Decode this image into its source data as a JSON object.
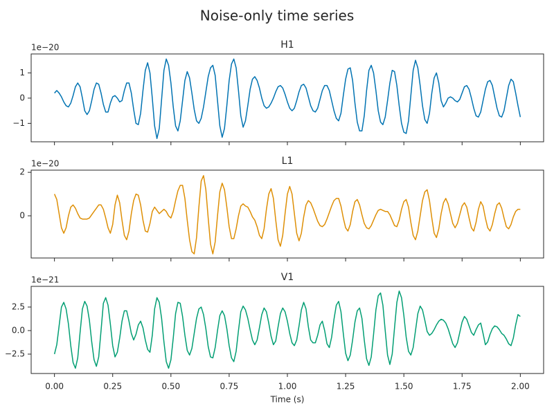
{
  "chart_data": {
    "type": "line",
    "title": "Noise-only time series",
    "xlabel": "Time (s)",
    "xlim": [
      -0.1,
      2.1
    ],
    "xticks": [
      {
        "value": 0,
        "label": "0.00"
      },
      {
        "value": 0.25,
        "label": "0.25"
      },
      {
        "value": 0.5,
        "label": "0.50"
      },
      {
        "value": 0.75,
        "label": "0.75"
      },
      {
        "value": 1,
        "label": "1.00"
      },
      {
        "value": 1.25,
        "label": "1.25"
      },
      {
        "value": 1.5,
        "label": "1.50"
      },
      {
        "value": 1.75,
        "label": "1.75"
      },
      {
        "value": 2,
        "label": "2.00"
      }
    ],
    "x": [
      0,
      0.01,
      0.02,
      0.03,
      0.04,
      0.05,
      0.06,
      0.07,
      0.08,
      0.09,
      0.1,
      0.11,
      0.12,
      0.13,
      0.14,
      0.15,
      0.16,
      0.17,
      0.18,
      0.19,
      0.2,
      0.21,
      0.22,
      0.23,
      0.24,
      0.25,
      0.26,
      0.27,
      0.28,
      0.29,
      0.3,
      0.31,
      0.32,
      0.33,
      0.34,
      0.35,
      0.36,
      0.37,
      0.38,
      0.39,
      0.4,
      0.41,
      0.42,
      0.43,
      0.44,
      0.45,
      0.46,
      0.47,
      0.48,
      0.49,
      0.5,
      0.51,
      0.52,
      0.53,
      0.54,
      0.55,
      0.56,
      0.57,
      0.58,
      0.59,
      0.6,
      0.61,
      0.62,
      0.63,
      0.64,
      0.65,
      0.66,
      0.67,
      0.68,
      0.69,
      0.7,
      0.71,
      0.72,
      0.73,
      0.74,
      0.75,
      0.76,
      0.77,
      0.78,
      0.79,
      0.8,
      0.81,
      0.82,
      0.83,
      0.84,
      0.85,
      0.86,
      0.87,
      0.88,
      0.89,
      0.9,
      0.91,
      0.92,
      0.93,
      0.94,
      0.95,
      0.96,
      0.97,
      0.98,
      0.99,
      1,
      1.01,
      1.02,
      1.03,
      1.04,
      1.05,
      1.06,
      1.07,
      1.08,
      1.09,
      1.1,
      1.11,
      1.12,
      1.13,
      1.14,
      1.15,
      1.16,
      1.17,
      1.18,
      1.19,
      1.2,
      1.21,
      1.22,
      1.23,
      1.24,
      1.25,
      1.26,
      1.27,
      1.28,
      1.29,
      1.3,
      1.31,
      1.32,
      1.33,
      1.34,
      1.35,
      1.36,
      1.37,
      1.38,
      1.39,
      1.4,
      1.41,
      1.42,
      1.43,
      1.44,
      1.45,
      1.46,
      1.47,
      1.48,
      1.49,
      1.5,
      1.51,
      1.52,
      1.53,
      1.54,
      1.55,
      1.56,
      1.57,
      1.58,
      1.59,
      1.6,
      1.61,
      1.62,
      1.63,
      1.64,
      1.65,
      1.66,
      1.67,
      1.68,
      1.69,
      1.7,
      1.71,
      1.72,
      1.73,
      1.74,
      1.75,
      1.76,
      1.77,
      1.78,
      1.79,
      1.8,
      1.81,
      1.82,
      1.83,
      1.84,
      1.85,
      1.86,
      1.87,
      1.88,
      1.89,
      1.9,
      1.91,
      1.92,
      1.93,
      1.94,
      1.95,
      1.96,
      1.97,
      1.98,
      1.99,
      2
    ],
    "panels": [
      {
        "title": "H1",
        "offset_label": "1e−20",
        "ylim": [
          -1.73,
          1.75
        ],
        "yticks": [
          {
            "value": -1,
            "label": "−1"
          },
          0,
          1
        ],
        "series": [
          {
            "color": "#0173b2",
            "values": [
              0.2,
              0.3,
              0.2,
              0.05,
              -0.15,
              -0.3,
              -0.35,
              -0.2,
              0.1,
              0.45,
              0.6,
              0.45,
              0,
              -0.5,
              -0.65,
              -0.5,
              -0.1,
              0.35,
              0.6,
              0.55,
              0.2,
              -0.25,
              -0.55,
              -0.55,
              -0.2,
              0.05,
              0.1,
              0,
              -0.15,
              -0.1,
              0.3,
              0.6,
              0.6,
              0.2,
              -0.45,
              -1,
              -1.05,
              -0.6,
              0.3,
              1.1,
              1.4,
              1,
              0,
              -1.1,
              -1.6,
              -1.2,
              -0.05,
              1.1,
              1.55,
              1.3,
              0.6,
              -0.35,
              -1.1,
              -1.3,
              -0.9,
              -0.1,
              0.7,
              1.05,
              0.8,
              0.2,
              -0.45,
              -0.9,
              -1,
              -0.8,
              -0.35,
              0.25,
              0.85,
              1.2,
              1.3,
              0.9,
              -0.1,
              -1.1,
              -1.55,
              -1.2,
              -0.3,
              0.7,
              1.35,
              1.55,
              1.2,
              0.3,
              -0.7,
              -1.15,
              -0.9,
              -0.3,
              0.35,
              0.75,
              0.85,
              0.7,
              0.4,
              0,
              -0.3,
              -0.4,
              -0.35,
              -0.2,
              0,
              0.25,
              0.45,
              0.5,
              0.4,
              0.15,
              -0.15,
              -0.4,
              -0.5,
              -0.4,
              -0.1,
              0.25,
              0.5,
              0.55,
              0.4,
              0.05,
              -0.3,
              -0.5,
              -0.55,
              -0.4,
              -0.05,
              0.3,
              0.5,
              0.5,
              0.3,
              -0.1,
              -0.5,
              -0.8,
              -0.9,
              -0.6,
              0.1,
              0.75,
              1.15,
              1.2,
              0.7,
              -0.2,
              -0.95,
              -1.3,
              -1.3,
              -0.7,
              0.3,
              1.1,
              1.3,
              1,
              0.3,
              -0.5,
              -0.95,
              -1.05,
              -0.75,
              -0.1,
              0.6,
              1.1,
              1.05,
              0.5,
              -0.3,
              -1,
              -1.35,
              -1.4,
              -0.9,
              0.1,
              1.1,
              1.5,
              1.2,
              0.5,
              -0.3,
              -0.85,
              -1,
              -0.6,
              0.2,
              0.8,
              1,
              0.6,
              -0.1,
              -0.35,
              -0.2,
              0,
              0.05,
              0,
              -0.1,
              -0.15,
              -0.05,
              0.2,
              0.45,
              0.5,
              0.35,
              0,
              -0.4,
              -0.7,
              -0.75,
              -0.55,
              -0.1,
              0.35,
              0.65,
              0.7,
              0.5,
              0.05,
              -0.4,
              -0.7,
              -0.75,
              -0.5,
              0,
              0.5,
              0.75,
              0.65,
              0.2,
              -0.3,
              -0.75
            ]
          }
        ]
      },
      {
        "title": "L1",
        "offset_label": "1e−20",
        "ylim": [
          -1.94,
          2.1
        ],
        "yticks": [
          0,
          2
        ],
        "series": [
          {
            "color": "#de8f05",
            "values": [
              1,
              0.75,
              0.1,
              -0.55,
              -0.8,
              -0.55,
              0,
              0.4,
              0.5,
              0.35,
              0.1,
              -0.1,
              -0.15,
              -0.15,
              -0.15,
              -0.1,
              0.05,
              0.2,
              0.35,
              0.5,
              0.5,
              0.3,
              -0.1,
              -0.55,
              -0.8,
              -0.4,
              0.5,
              0.95,
              0.6,
              -0.2,
              -0.9,
              -1.1,
              -0.7,
              0.1,
              0.7,
              1,
              0.95,
              0.5,
              -0.2,
              -0.7,
              -0.75,
              -0.35,
              0.2,
              0.4,
              0.25,
              0.1,
              0.2,
              0.3,
              0.2,
              0,
              -0.1,
              0.2,
              0.7,
              1.15,
              1.4,
              1.4,
              0.8,
              -0.2,
              -1.1,
              -1.65,
              -1.75,
              -1,
              0.4,
              1.6,
              1.85,
              1.2,
              -0.1,
              -1.3,
              -1.75,
              -1.2,
              0,
              1.1,
              1.5,
              1.2,
              0.4,
              -0.5,
              -1.05,
              -1.05,
              -0.6,
              0,
              0.45,
              0.55,
              0.45,
              0.4,
              0.2,
              -0.05,
              -0.2,
              -0.5,
              -0.9,
              -1.05,
              -0.6,
              0.3,
              1,
              1.25,
              0.8,
              -0.2,
              -1.1,
              -1.4,
              -0.9,
              0.1,
              1,
              1.35,
              1,
              0.1,
              -0.8,
              -1.15,
              -0.8,
              -0.05,
              0.5,
              0.7,
              0.6,
              0.35,
              0.05,
              -0.25,
              -0.45,
              -0.5,
              -0.4,
              -0.15,
              0.15,
              0.45,
              0.7,
              0.8,
              0.8,
              0.45,
              -0.1,
              -0.55,
              -0.7,
              -0.4,
              0.2,
              0.65,
              0.75,
              0.5,
              0.05,
              -0.35,
              -0.55,
              -0.6,
              -0.45,
              -0.2,
              0.05,
              0.25,
              0.3,
              0.25,
              0.2,
              0.2,
              0.05,
              -0.2,
              -0.45,
              -0.5,
              -0.2,
              0.3,
              0.65,
              0.75,
              0.4,
              -0.3,
              -0.9,
              -1.1,
              -0.7,
              0,
              0.7,
              1.1,
              1.2,
              0.7,
              -0.1,
              -0.8,
              -1,
              -0.6,
              0.1,
              0.6,
              0.8,
              0.55,
              0.1,
              -0.35,
              -0.55,
              -0.35,
              0.05,
              0.45,
              0.6,
              0.4,
              -0.1,
              -0.55,
              -0.7,
              -0.3,
              0.3,
              0.65,
              0.45,
              -0.1,
              -0.55,
              -0.7,
              -0.4,
              0.1,
              0.5,
              0.6,
              0.35,
              -0.1,
              -0.5,
              -0.6,
              -0.4,
              -0.05,
              0.2,
              0.3,
              0.3
            ]
          }
        ]
      },
      {
        "title": "V1",
        "offset_label": "1e−21",
        "ylim": [
          -4.56,
          4.7
        ],
        "yticks": [
          {
            "value": -2.5,
            "label": "−2.5"
          },
          {
            "value": 0,
            "label": "0.0"
          },
          2.5
        ],
        "series": [
          {
            "color": "#029e73",
            "values": [
              -2.5,
              -1.5,
              0.5,
              2.5,
              3,
              2.3,
              0.7,
              -1.6,
              -3.4,
              -4,
              -2.9,
              -0.2,
              2.3,
              3.1,
              2.6,
              1.1,
              -1.2,
              -3.1,
              -3.8,
              -2.8,
              0,
              2.9,
              3.5,
              2.7,
              0.7,
              -1.6,
              -2.8,
              -2.3,
              -0.8,
              1,
              2.1,
              2.1,
              1,
              -0.3,
              -1,
              -0.4,
              0.6,
              1,
              0.3,
              -1,
              -2,
              -2.3,
              -0.5,
              2.3,
              3.5,
              3,
              1.3,
              -1.2,
              -3.3,
              -4,
              -3.1,
              -0.8,
              1.8,
              3,
              2.9,
              1.5,
              -0.5,
              -2.1,
              -2.6,
              -1.9,
              -0.3,
              1.3,
              2.3,
              2.5,
              1.7,
              0.2,
              -1.7,
              -2.8,
              -2.9,
              -1.8,
              0,
              1.6,
              2.1,
              1.6,
              0.2,
              -1.6,
              -2.9,
              -3.3,
              -2.2,
              0,
              2,
              2.6,
              2.2,
              1.3,
              0.1,
              -1,
              -1.5,
              -1,
              0.3,
              1.7,
              2.4,
              2,
              0.8,
              -0.6,
              -1.5,
              -1.1,
              0.4,
              1.8,
              2.4,
              2,
              1,
              -0.3,
              -1.3,
              -1.6,
              -1,
              0.5,
              2.2,
              3,
              2.3,
              0.4,
              -1,
              -1.3,
              -1.3,
              -0.5,
              0.6,
              1,
              0,
              -1.4,
              -1.8,
              -0.7,
              1.2,
              2.7,
              3.1,
              2,
              -0.3,
              -2.4,
              -3.2,
              -2.6,
              -1,
              0.9,
              2.1,
              2.4,
              1.3,
              -1,
              -3,
              -3.7,
              -2.8,
              -0.4,
              2.2,
              3.7,
              4,
              2.7,
              0,
              -2.6,
              -3.6,
              -2.5,
              0.3,
              3,
              4.2,
              3.5,
              1.6,
              -0.7,
              -2.2,
              -2.6,
              -1.8,
              0,
              1.8,
              2.6,
              2.2,
              1.1,
              -0.1,
              -0.5,
              -0.3,
              0.1,
              0.6,
              1,
              1.2,
              1.1,
              0.8,
              0.2,
              -0.6,
              -1.4,
              -1.8,
              -1.3,
              -0.2,
              0.9,
              1.5,
              1.2,
              0.5,
              -0.2,
              -0.5,
              0.1,
              0.6,
              0.8,
              -0.3,
              -1.5,
              -1.2,
              -0.4,
              0.2,
              0.5,
              0.4,
              0.1,
              -0.3,
              -0.5,
              -0.9,
              -1.4,
              -1.6,
              -0.8,
              0.6,
              1.7,
              1.5
            ]
          }
        ]
      }
    ]
  }
}
